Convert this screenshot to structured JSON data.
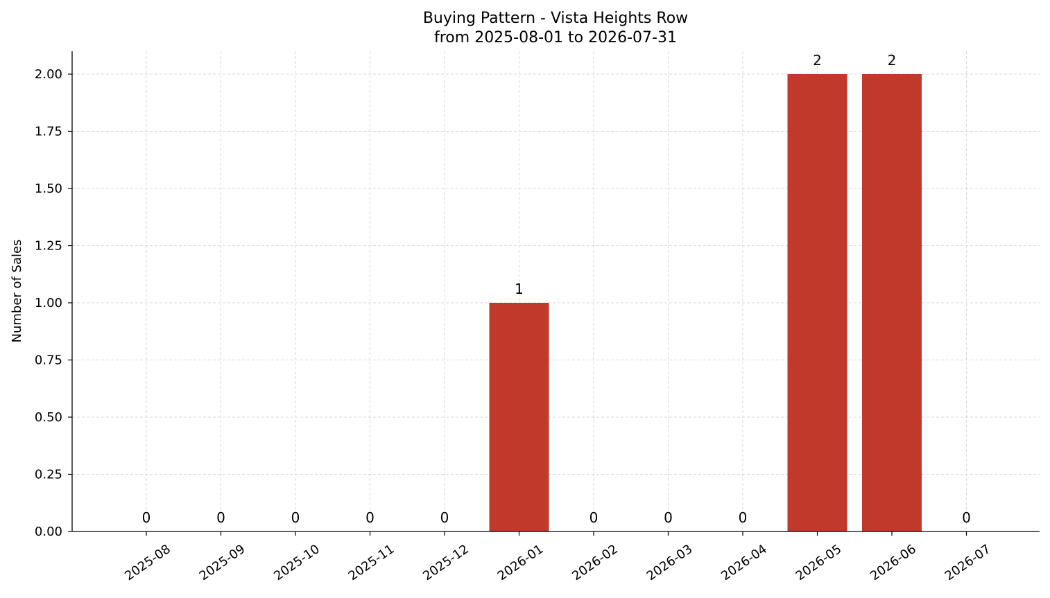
{
  "chart_data": {
    "type": "bar",
    "title": "Buying Pattern - Vista Heights Row",
    "subtitle": "from 2025-08-01 to 2026-07-31",
    "xlabel": "",
    "ylabel": "Number of Sales",
    "categories": [
      "2025-08",
      "2025-09",
      "2025-10",
      "2025-11",
      "2025-12",
      "2026-01",
      "2026-02",
      "2026-03",
      "2026-04",
      "2026-05",
      "2026-06",
      "2026-07"
    ],
    "values": [
      0,
      0,
      0,
      0,
      0,
      1,
      0,
      0,
      0,
      2,
      2,
      0
    ],
    "data_labels": [
      "0",
      "0",
      "0",
      "0",
      "0",
      "1",
      "0",
      "0",
      "0",
      "2",
      "2",
      "0"
    ],
    "ylim": [
      0,
      2.1
    ],
    "yticks": [
      0,
      0.25,
      0.5,
      0.75,
      1.0,
      1.25,
      1.5,
      1.75,
      2.0
    ],
    "ytick_labels": [
      "0.00",
      "0.25",
      "0.50",
      "0.75",
      "1.00",
      "1.25",
      "1.50",
      "1.75",
      "2.00"
    ],
    "grid": true,
    "bar_color": "#c0392b",
    "grid_color": "#d9d9d9"
  }
}
